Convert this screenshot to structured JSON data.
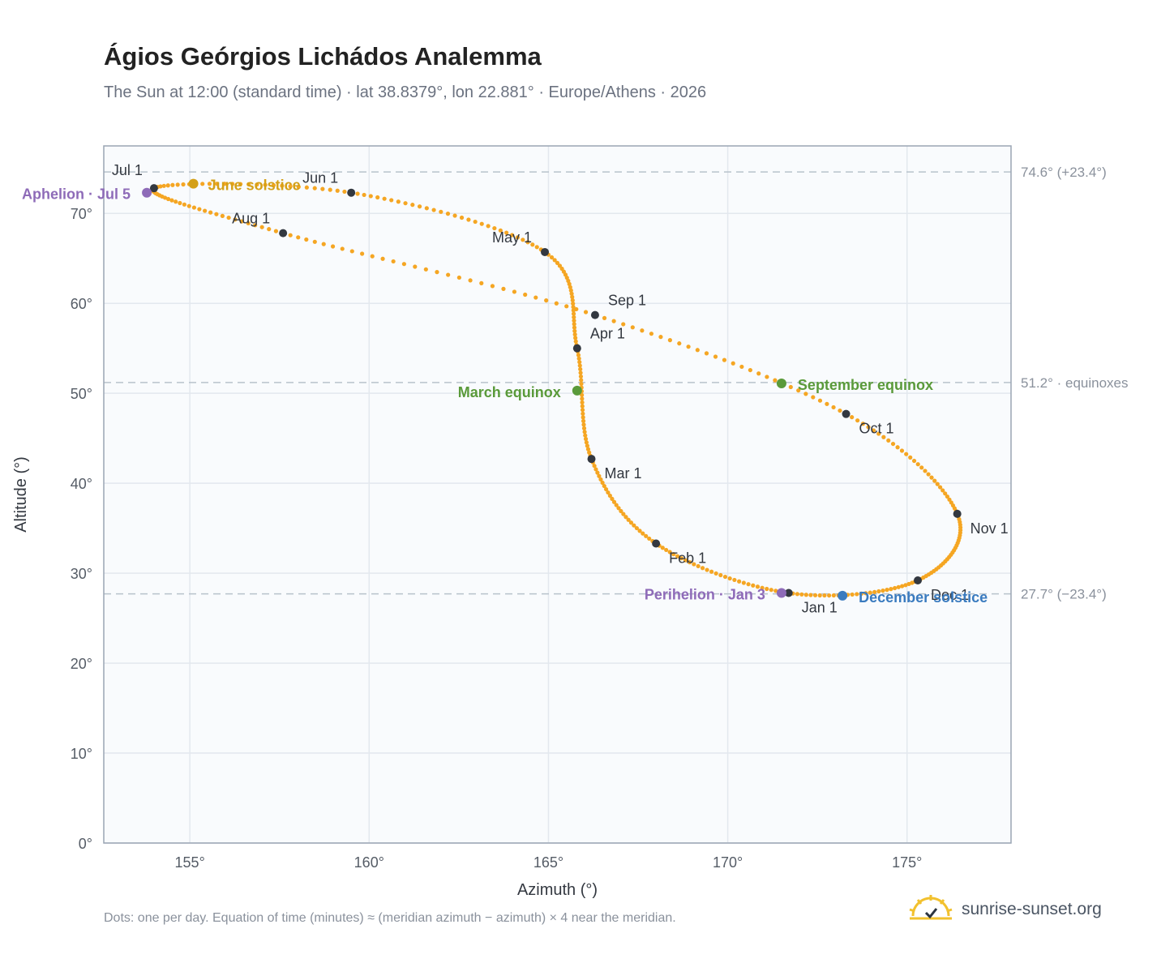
{
  "header": {
    "title": "Ágios Geórgios Lichádos Analemma",
    "subtitle": "The Sun at 12:00 (standard time) · lat 38.8379°, lon 22.881° · Europe/Athens · 2026"
  },
  "footer": {
    "note": "Dots: one per day. Equation of time (minutes) ≈ (meridian azimuth − azimuth) × 4 near the meridian.",
    "brand": "sunrise-sunset.org",
    "brand_icon": "sun-logo-icon"
  },
  "colors": {
    "curve": "#f5a623",
    "month_dot": "#333840",
    "june_solstice": "#d4a017",
    "december_solstice": "#3a7bbf",
    "equinox": "#5a9a3a",
    "apsis": "#8e6bb8",
    "plot_bg": "#f9fbfd"
  },
  "chart_data": {
    "type": "scatter",
    "xlabel": "Azimuth (°)",
    "ylabel": "Altitude (°)",
    "xlim": [
      152.6,
      177.9
    ],
    "ylim": [
      0,
      77.5
    ],
    "xticks": [
      155,
      160,
      165,
      170,
      175
    ],
    "xtick_labels": [
      "155°",
      "160°",
      "165°",
      "170°",
      "175°"
    ],
    "yticks": [
      0,
      10,
      20,
      30,
      40,
      50,
      60,
      70
    ],
    "ytick_labels": [
      "0°",
      "10°",
      "20°",
      "30°",
      "40°",
      "50°",
      "60°",
      "70°"
    ],
    "grid": true,
    "reference_lines": [
      {
        "y": 74.6,
        "label": "74.6° (+23.4°)"
      },
      {
        "y": 51.2,
        "label": "51.2° · equinoxes"
      },
      {
        "y": 27.7,
        "label": "27.7° (−23.4°)"
      }
    ],
    "month_points": [
      {
        "label": "Jan 1",
        "x": 171.7,
        "y": 27.8
      },
      {
        "label": "Feb 1",
        "x": 168.0,
        "y": 33.3
      },
      {
        "label": "Mar 1",
        "x": 166.2,
        "y": 42.7
      },
      {
        "label": "Apr 1",
        "x": 165.8,
        "y": 55.0
      },
      {
        "label": "May 1",
        "x": 164.9,
        "y": 65.7
      },
      {
        "label": "Jun 1",
        "x": 159.5,
        "y": 72.3
      },
      {
        "label": "Jul 1",
        "x": 154.0,
        "y": 72.8
      },
      {
        "label": "Aug 1",
        "x": 157.6,
        "y": 67.8
      },
      {
        "label": "Sep 1",
        "x": 166.3,
        "y": 58.7
      },
      {
        "label": "Oct 1",
        "x": 173.3,
        "y": 47.7
      },
      {
        "label": "Nov 1",
        "x": 176.4,
        "y": 36.6
      },
      {
        "label": "Dec 1",
        "x": 175.3,
        "y": 29.2
      }
    ],
    "events": [
      {
        "label": "June solstice",
        "x": 155.1,
        "y": 73.3,
        "kind": "june_solstice"
      },
      {
        "label": "December solstice",
        "x": 173.2,
        "y": 27.5,
        "kind": "december_solstice"
      },
      {
        "label": "March equinox",
        "x": 165.8,
        "y": 50.3,
        "kind": "equinox"
      },
      {
        "label": "September equinox",
        "x": 171.5,
        "y": 51.1,
        "kind": "equinox"
      },
      {
        "label": "Aphelion · Jul 5",
        "x": 153.8,
        "y": 72.3,
        "kind": "apsis"
      },
      {
        "label": "Perihelion · Jan 3",
        "x": 171.5,
        "y": 27.8,
        "kind": "apsis"
      }
    ]
  }
}
